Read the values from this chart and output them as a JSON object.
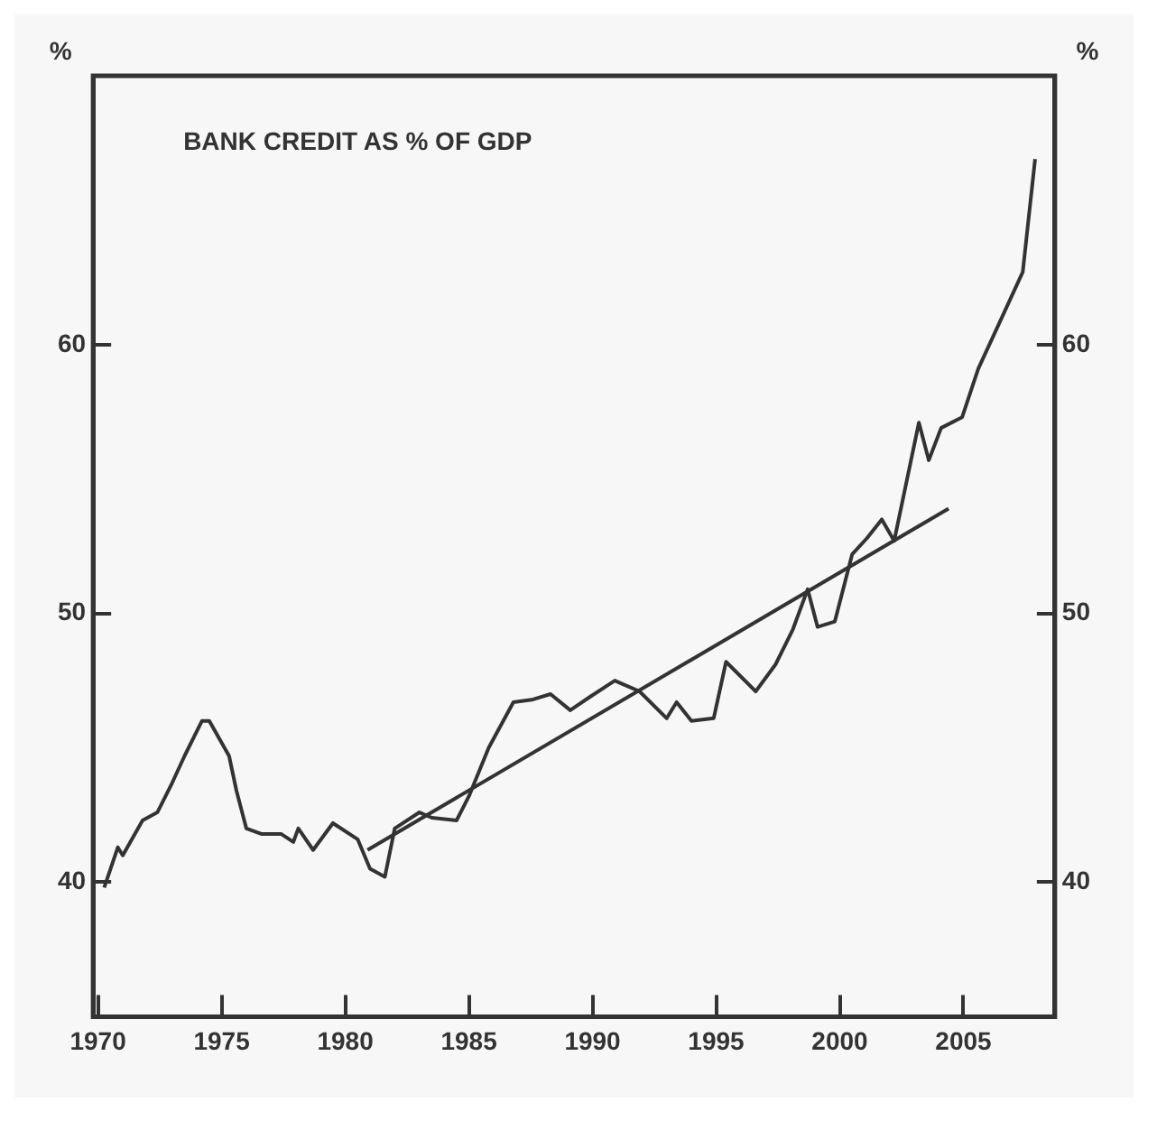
{
  "chart_data": {
    "type": "line",
    "title": "BANK CREDIT AS % OF GDP",
    "ylabel": "%",
    "y2label": "%",
    "xlim": [
      1969.8,
      2008.7
    ],
    "xticks": [
      1970,
      1975,
      1980,
      1985,
      1990,
      1995,
      2000,
      2005
    ],
    "ylim": [
      35,
      70
    ],
    "yticks": [
      40,
      50,
      60
    ],
    "y2lim": [
      35,
      70
    ],
    "y2ticks": [
      40,
      50,
      60
    ],
    "grid": false,
    "legend": false,
    "marker": "none",
    "line_style": "solid",
    "series": [
      {
        "color": "#333333",
        "x": [
          1970.25,
          1970.8,
          1971.0,
          1971.8,
          1972.4,
          1973.0,
          1973.5,
          1974.2,
          1974.5,
          1975.3,
          1975.6,
          1976.0,
          1976.6,
          1977.4,
          1977.9,
          1978.1,
          1978.7,
          1979.5,
          1980.5,
          1981.0,
          1981.6,
          1982.0,
          1983.0,
          1983.5,
          1984.5,
          1985.0,
          1985.8,
          1986.8,
          1987.6,
          1988.3,
          1989.1,
          1989.9,
          1990.9,
          1991.9,
          1993.0,
          1993.4,
          1994.0,
          1994.9,
          1995.4,
          1996.6,
          1997.4,
          1998.1,
          1998.7,
          1999.1,
          1999.8,
          2000.5,
          2001.1,
          2001.7,
          2002.2,
          2003.2,
          2003.6,
          2004.1,
          2004.95,
          2005.6,
          2006.6,
          2007.4,
          2007.9
        ],
        "values": [
          39.8,
          41.3,
          41.0,
          42.3,
          42.6,
          43.7,
          44.7,
          46.0,
          46.0,
          44.7,
          43.4,
          42.0,
          41.8,
          41.8,
          41.5,
          42.0,
          41.2,
          42.2,
          41.6,
          40.5,
          40.2,
          42.0,
          42.6,
          42.4,
          42.3,
          43.2,
          45.0,
          46.7,
          46.8,
          47.0,
          46.4,
          46.9,
          47.5,
          47.1,
          46.1,
          46.7,
          46.0,
          46.1,
          48.2,
          47.1,
          48.1,
          49.4,
          50.9,
          49.5,
          49.7,
          52.2,
          52.8,
          53.5,
          52.7,
          57.1,
          55.7,
          56.9,
          57.3,
          59.1,
          61.1,
          62.7,
          66.9
        ]
      },
      {
        "type": "line",
        "color": "#333333",
        "x": [
          1980.9,
          2004.4
        ],
        "values": [
          41.2,
          53.9
        ]
      }
    ]
  }
}
